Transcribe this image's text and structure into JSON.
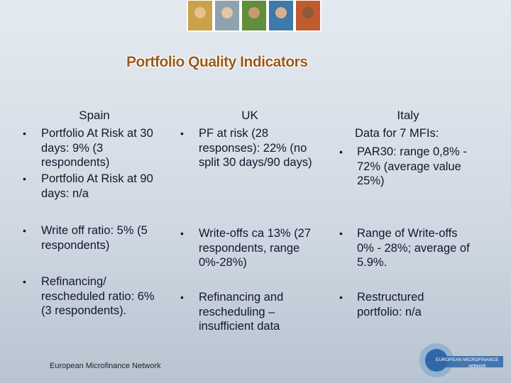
{
  "header": {
    "title": "Portfolio Quality Indicators"
  },
  "columns": [
    {
      "heading": "Spain",
      "blocks": [
        {
          "bullet": true,
          "lines": [
            "Portfolio At Risk at 30",
            "days: 9% (3",
            "respondents)"
          ]
        },
        {
          "bullet": true,
          "lines": [
            "Portfolio At Risk at 90",
            "days: n/a"
          ]
        },
        {
          "bullet": true,
          "lines": [
            "Write off ratio: 5% (5",
            "respondents)"
          ]
        },
        {
          "bullet": true,
          "lines": [
            "Refinancing/",
            "rescheduled ratio: 6%",
            "(3 respondents)."
          ]
        }
      ]
    },
    {
      "heading": "UK",
      "blocks": [
        {
          "bullet": true,
          "lines": [
            "PF at risk (28",
            "responses): 22% (no",
            "split 30 days/90 days)"
          ]
        },
        {
          "bullet": true,
          "lines": [
            "Write-offs ca 13% (27",
            "respondents, range",
            "0%-28%)"
          ]
        },
        {
          "bullet": true,
          "lines": [
            "Refinancing and",
            "rescheduling –",
            "insufficient data"
          ]
        }
      ]
    },
    {
      "heading": "Italy",
      "blocks": [
        {
          "bullet": false,
          "lines": [
            "Data for 7 MFIs:"
          ]
        },
        {
          "bullet": true,
          "lines": [
            "PAR30: range 0,8% -",
            "72% (average value",
            "25%)"
          ]
        },
        {
          "bullet": true,
          "lines": [
            "Range of Write-offs",
            "0% - 28%; average of",
            "5.9%."
          ]
        },
        {
          "bullet": true,
          "lines": [
            "Restructured",
            "portfolio: n/a"
          ]
        }
      ]
    }
  ],
  "footer": {
    "text": "European Microfinance Network",
    "logo_text": "EUROPEAN MICROFINANCE",
    "logo_subtext": "network"
  }
}
